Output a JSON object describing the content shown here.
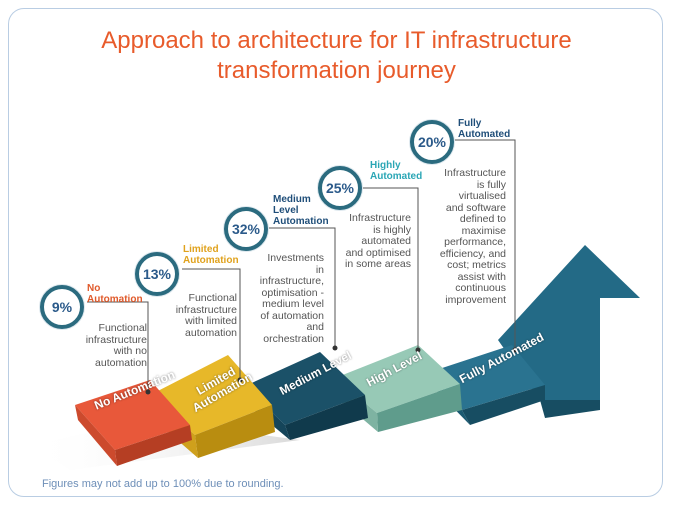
{
  "title_line1": "Approach to architecture for IT infrastructure",
  "title_line2": "transformation journey",
  "footnote": "Figures may not add up to 100% due to rounding.",
  "stages": [
    {
      "percent": "9%",
      "level_lines": [
        "No",
        "Automation"
      ],
      "level_color": "#e05a2b",
      "desc_lines": [
        "Functional",
        "infrastructure",
        "with no",
        "automation"
      ],
      "step_lines": [
        "No Automation"
      ],
      "step_color": "#e8583a"
    },
    {
      "percent": "13%",
      "level_lines": [
        "Limited",
        "Automation"
      ],
      "level_color": "#e0a21d",
      "desc_lines": [
        "Functional",
        "infrastructure",
        "with limited",
        "automation"
      ],
      "step_lines": [
        "Limited",
        "Automation"
      ],
      "step_color": "#e6b82c"
    },
    {
      "percent": "32%",
      "level_lines": [
        "Medium",
        "Level",
        "Automation"
      ],
      "level_color": "#1f4e79",
      "desc_lines": [
        "Investments",
        "in",
        "infrastructure,",
        "optimisation -",
        "medium level",
        "of automation",
        "and",
        "orchestration"
      ],
      "step_lines": [
        "Medium Level"
      ],
      "step_color": "#1e5068"
    },
    {
      "percent": "25%",
      "level_lines": [
        "Highly",
        "Automated"
      ],
      "level_color": "#2aa6b5",
      "desc_lines": [
        "Infrastructure",
        "is highly",
        "automated",
        "and optimised",
        "in some areas"
      ],
      "step_lines": [
        "High Level"
      ],
      "step_color": "#8fc3b0"
    },
    {
      "percent": "20%",
      "level_lines": [
        "Fully",
        "Automated"
      ],
      "level_color": "#1f4e79",
      "desc_lines": [
        "Infrastructure",
        "is fully",
        "virtualised",
        "and software",
        "defined to",
        "maximise",
        "performance,",
        "efficiency, and",
        "cost; metrics",
        "assist with",
        "continuous",
        "improvement"
      ],
      "step_lines": [
        "Fully Automated"
      ],
      "step_color": "#226a84"
    }
  ]
}
